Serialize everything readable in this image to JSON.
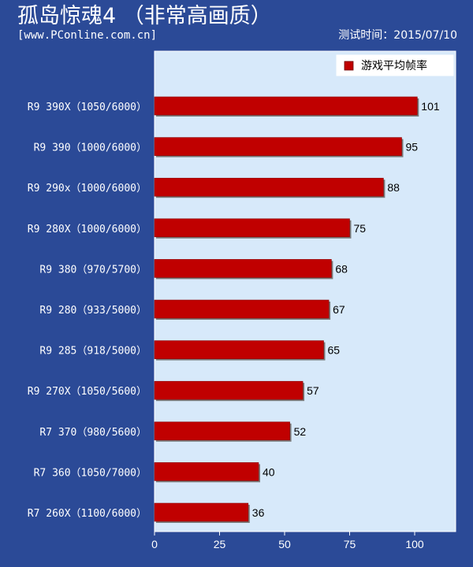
{
  "header": {
    "title": "孤岛惊魂4 （非常高画质）",
    "source": "[www.PConline.com.cn]",
    "test_date": "测试时间：2015/07/10"
  },
  "colors": {
    "background": "#2b4a97",
    "plot_background": "#d7e9fa",
    "bar": "#c00000"
  },
  "chart_data": {
    "type": "bar",
    "orientation": "horizontal",
    "categories": [
      "R9 390X（1050/6000）",
      "R9 390（1000/6000）",
      "R9 290x（1000/6000）",
      "R9 280X（1000/6000）",
      "R9 380（970/5700）",
      "R9 280（933/5000）",
      "R9 285（918/5000）",
      "R9 270X（1050/5600）",
      "R7 370（980/5600）",
      "R7 360（1050/7000）",
      "R7 260X（1100/6000）"
    ],
    "series": [
      {
        "name": "游戏平均帧率",
        "values": [
          101,
          95,
          88,
          75,
          68,
          67,
          65,
          57,
          52,
          40,
          36
        ]
      }
    ],
    "xlim": [
      0,
      115
    ],
    "xticks": [
      0,
      25,
      50,
      75,
      100
    ],
    "legend_position": "top-right",
    "grid": false
  }
}
